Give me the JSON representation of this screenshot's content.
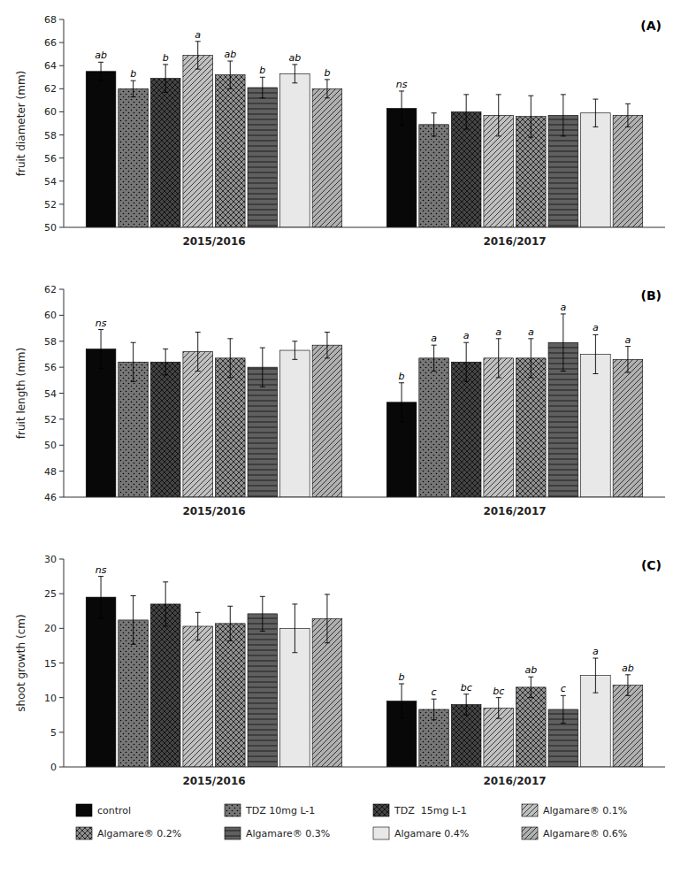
{
  "chart_data": [
    {
      "type": "bar",
      "title": "(A)",
      "ylabel": "fruit diameter (mm)",
      "categories": [
        "2015/2016",
        "2016/2017"
      ],
      "ylim": [
        50,
        68
      ],
      "yticks": [
        50,
        52,
        54,
        56,
        58,
        60,
        62,
        64,
        66,
        68
      ],
      "grid": false,
      "series": [
        {
          "color": "#080808",
          "values": [
            63.5,
            60.3
          ],
          "errors": [
            0.8,
            1.5
          ],
          "letters": [
            "ab",
            "ns"
          ]
        },
        {
          "color": "#777777",
          "values": [
            62.0,
            58.9
          ],
          "errors": [
            0.7,
            1.0
          ],
          "letters": [
            "b",
            null
          ]
        },
        {
          "color": "#444444",
          "values": [
            62.9,
            60.0
          ],
          "errors": [
            1.2,
            1.5
          ],
          "letters": [
            "b",
            null
          ]
        },
        {
          "color": "#c0c0c0",
          "values": [
            64.9,
            59.7
          ],
          "errors": [
            1.2,
            1.8
          ],
          "letters": [
            "a",
            null
          ]
        },
        {
          "color": "#909090",
          "values": [
            63.2,
            59.6
          ],
          "errors": [
            1.2,
            1.8
          ],
          "letters": [
            "ab",
            null
          ]
        },
        {
          "color": "#606060",
          "values": [
            62.1,
            59.7
          ],
          "errors": [
            0.9,
            1.8
          ],
          "letters": [
            "b",
            null
          ]
        },
        {
          "color": "#e8e8e8",
          "values": [
            63.3,
            59.9
          ],
          "errors": [
            0.8,
            1.2
          ],
          "letters": [
            "ab",
            null
          ]
        },
        {
          "color": "#b0b0b0",
          "values": [
            62.0,
            59.7
          ],
          "errors": [
            0.8,
            1.0
          ],
          "letters": [
            "b",
            null
          ]
        }
      ]
    },
    {
      "type": "bar",
      "title": "(B)",
      "ylabel": "fruit length (mm)",
      "categories": [
        "2015/2016",
        "2016/2017"
      ],
      "ylim": [
        46,
        62
      ],
      "yticks": [
        46,
        48,
        50,
        52,
        54,
        56,
        58,
        60,
        62
      ],
      "grid": false,
      "series": [
        {
          "color": "#080808",
          "values": [
            57.4,
            53.3
          ],
          "errors": [
            1.5,
            1.5
          ],
          "letters": [
            "ns",
            "b"
          ]
        },
        {
          "color": "#777777",
          "values": [
            56.4,
            56.7
          ],
          "errors": [
            1.5,
            1.0
          ],
          "letters": [
            null,
            "a"
          ]
        },
        {
          "color": "#444444",
          "values": [
            56.4,
            56.4
          ],
          "errors": [
            1.0,
            1.5
          ],
          "letters": [
            null,
            "a"
          ]
        },
        {
          "color": "#c0c0c0",
          "values": [
            57.2,
            56.7
          ],
          "errors": [
            1.5,
            1.5
          ],
          "letters": [
            null,
            "a"
          ]
        },
        {
          "color": "#909090",
          "values": [
            56.7,
            56.7
          ],
          "errors": [
            1.5,
            1.5
          ],
          "letters": [
            null,
            "a"
          ]
        },
        {
          "color": "#606060",
          "values": [
            56.0,
            57.9
          ],
          "errors": [
            1.5,
            2.2
          ],
          "letters": [
            null,
            "a"
          ]
        },
        {
          "color": "#e8e8e8",
          "values": [
            57.3,
            57.0
          ],
          "errors": [
            0.7,
            1.5
          ],
          "letters": [
            null,
            "a"
          ]
        },
        {
          "color": "#b0b0b0",
          "values": [
            57.7,
            56.6
          ],
          "errors": [
            1.0,
            1.0
          ],
          "letters": [
            null,
            "a"
          ]
        }
      ]
    },
    {
      "type": "bar",
      "title": "(C)",
      "ylabel": "shoot growth (cm)",
      "categories": [
        "2015/2016",
        "2016/2017"
      ],
      "ylim": [
        0,
        30
      ],
      "yticks": [
        0,
        5,
        10,
        15,
        20,
        25,
        30
      ],
      "grid": false,
      "legend": "bottom",
      "series": [
        {
          "name": "control",
          "color": "#080808",
          "values": [
            24.5,
            9.5
          ],
          "errors": [
            3.0,
            2.5
          ],
          "letters": [
            "ns",
            "b"
          ]
        },
        {
          "name": "TDZ 10mg L-1",
          "color": "#777777",
          "values": [
            21.2,
            8.3
          ],
          "errors": [
            3.5,
            1.5
          ],
          "letters": [
            null,
            "c"
          ]
        },
        {
          "name": "TDZ  15mg L-1",
          "color": "#444444",
          "values": [
            23.5,
            9.0
          ],
          "errors": [
            3.2,
            1.5
          ],
          "letters": [
            null,
            "bc"
          ]
        },
        {
          "name": "Algamare® 0.1%",
          "color": "#c0c0c0",
          "values": [
            20.3,
            8.5
          ],
          "errors": [
            2.0,
            1.5
          ],
          "letters": [
            null,
            "bc"
          ]
        },
        {
          "name": "Algamare® 0.2%",
          "color": "#909090",
          "values": [
            20.7,
            11.5
          ],
          "errors": [
            2.5,
            1.5
          ],
          "letters": [
            null,
            "ab"
          ]
        },
        {
          "name": "Algamare® 0.3%",
          "color": "#606060",
          "values": [
            22.1,
            8.3
          ],
          "errors": [
            2.5,
            2.0
          ],
          "letters": [
            null,
            "c"
          ]
        },
        {
          "name": "Algamare 0.4%",
          "color": "#e8e8e8",
          "values": [
            20.0,
            13.2
          ],
          "errors": [
            3.5,
            2.5
          ],
          "letters": [
            null,
            "a"
          ]
        },
        {
          "name": "Algamare® 0.6%",
          "color": "#b0b0b0",
          "values": [
            21.4,
            11.8
          ],
          "errors": [
            3.5,
            1.5
          ],
          "letters": [
            null,
            "ab"
          ]
        }
      ]
    }
  ]
}
